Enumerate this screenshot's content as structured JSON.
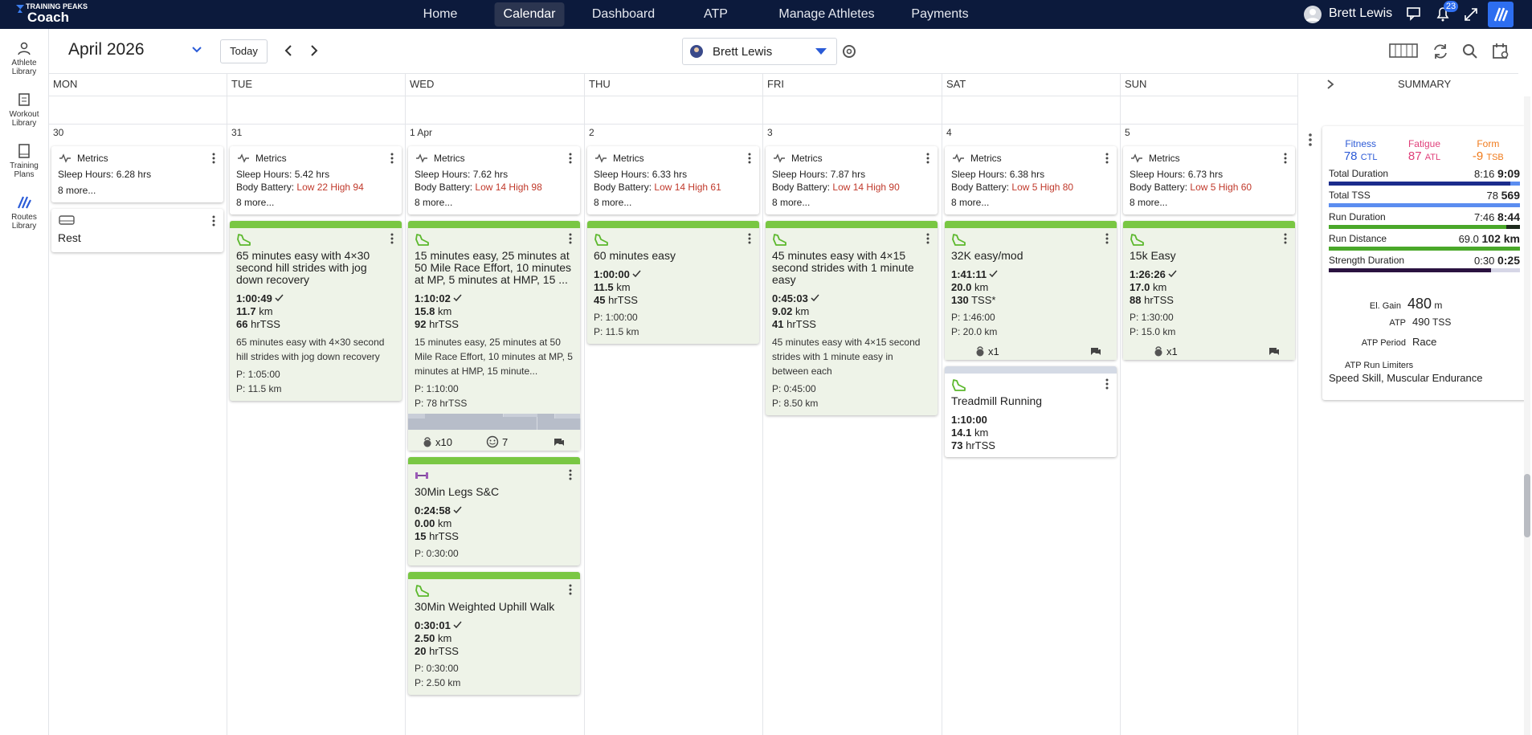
{
  "brand": {
    "top": "TRAINING PEAKS",
    "name": "Coach"
  },
  "nav": [
    "Home",
    "Calendar",
    "Dashboard",
    "ATP",
    "Manage Athletes",
    "Payments"
  ],
  "nav_active": 1,
  "user": {
    "name": "Brett Lewis",
    "notifications": "23"
  },
  "sidebar": [
    "Athlete Library",
    "Workout Library",
    "Training Plans",
    "Routes Library"
  ],
  "toolbar": {
    "month": "April 2026",
    "today": "Today",
    "athlete": "Brett Lewis"
  },
  "days": [
    "MON",
    "TUE",
    "WED",
    "THU",
    "FRI",
    "SAT",
    "SUN"
  ],
  "summary_header": "SUMMARY",
  "columns": [
    {
      "date": "30",
      "items": [
        {
          "kind": "metrics",
          "title": "Metrics",
          "sleep": "Sleep Hours: 6.28 hrs",
          "more": "8 more..."
        },
        {
          "kind": "rest",
          "title": "Rest"
        }
      ]
    },
    {
      "date": "31",
      "items": [
        {
          "kind": "metrics",
          "title": "Metrics",
          "sleep": "Sleep Hours: 5.42 hrs",
          "battery_label": "Body Battery:",
          "battery": "Low 22 High 94",
          "more": "8 more..."
        },
        {
          "kind": "workout",
          "sport": "run",
          "completed": true,
          "title": "65 minutes easy with 4×30 second hill strides with jog down recovery",
          "duration": "1:00:49",
          "distance": "11.7",
          "distance_unit": "km",
          "tss": "66",
          "tss_unit": "hrTSS",
          "description": "65 minutes easy with 4×30 second hill strides with jog down recovery",
          "planned": [
            "P: 1:05:00",
            "P: 11.5 km"
          ]
        }
      ]
    },
    {
      "date": "1 Apr",
      "items": [
        {
          "kind": "metrics",
          "title": "Metrics",
          "sleep": "Sleep Hours: 7.62 hrs",
          "battery_label": "Body Battery:",
          "battery": "Low 14 High 98",
          "more": "8 more..."
        },
        {
          "kind": "workout",
          "sport": "run",
          "completed": true,
          "title": "15 minutes easy, 25 minutes at 50 Mile Race Effort, 10 minutes at MP, 5 minutes at HMP, 15 ...",
          "duration": "1:10:02",
          "distance": "15.8",
          "distance_unit": "km",
          "tss": "92",
          "tss_unit": "hrTSS",
          "description": "15 minutes easy, 25 minutes at 50 Mile Race Effort, 10 minutes at MP, 5 minutes at HMP, 15 minute...",
          "planned": [
            "P: 1:10:00",
            "P: 78 hrTSS"
          ],
          "graph": true,
          "footer": {
            "strength": "x10",
            "smiley": "7",
            "comments": true
          }
        },
        {
          "kind": "workout",
          "sport": "strength",
          "completed": true,
          "title": "30Min Legs S&C",
          "duration": "0:24:58",
          "distance": "0.00",
          "distance_unit": "km",
          "tss": "15",
          "tss_unit": "hrTSS",
          "planned": [
            "P: 0:30:00"
          ]
        },
        {
          "kind": "workout",
          "sport": "run",
          "completed": true,
          "title": "30Min Weighted Uphill Walk",
          "duration": "0:30:01",
          "distance": "2.50",
          "distance_unit": "km",
          "tss": "20",
          "tss_unit": "hrTSS",
          "planned": [
            "P: 0:30:00",
            "P: 2.50 km"
          ]
        }
      ]
    },
    {
      "date": "2",
      "items": [
        {
          "kind": "metrics",
          "title": "Metrics",
          "sleep": "Sleep Hours: 6.33 hrs",
          "battery_label": "Body Battery:",
          "battery": "Low 14 High 61",
          "more": "8 more..."
        },
        {
          "kind": "workout",
          "sport": "run",
          "completed": true,
          "title": "60 minutes easy",
          "duration": "1:00:00",
          "distance": "11.5",
          "distance_unit": "km",
          "tss": "45",
          "tss_unit": "hrTSS",
          "planned": [
            "P: 1:00:00",
            "P: 11.5 km"
          ]
        }
      ]
    },
    {
      "date": "3",
      "items": [
        {
          "kind": "metrics",
          "title": "Metrics",
          "sleep": "Sleep Hours: 7.87 hrs",
          "battery_label": "Body Battery:",
          "battery": "Low 14 High 90",
          "more": "8 more..."
        },
        {
          "kind": "workout",
          "sport": "run",
          "completed": true,
          "title": "45 minutes easy with 4×15 second strides with 1 minute easy",
          "duration": "0:45:03",
          "distance": "9.02",
          "distance_unit": "km",
          "tss": "41",
          "tss_unit": "hrTSS",
          "description": "45 minutes easy with 4×15 second strides with 1 minute easy in between each",
          "planned": [
            "P: 0:45:00",
            "P: 8.50 km"
          ]
        }
      ]
    },
    {
      "date": "4",
      "items": [
        {
          "kind": "metrics",
          "title": "Metrics",
          "sleep": "Sleep Hours: 6.38 hrs",
          "battery_label": "Body Battery:",
          "battery": "Low 5 High 80",
          "more": "8 more..."
        },
        {
          "kind": "workout",
          "sport": "run",
          "completed": true,
          "title": "32K easy/mod",
          "duration": "1:41:11",
          "distance": "20.0",
          "distance_unit": "km",
          "tss": "130",
          "tss_unit": "TSS*",
          "planned": [
            "P: 1:46:00",
            "P: 20.0 km"
          ],
          "footer": {
            "strength": "x1",
            "comments": true
          }
        },
        {
          "kind": "workout",
          "sport": "run",
          "completed": false,
          "title": "Treadmill Running",
          "duration": "1:10:00",
          "distance": "14.1",
          "distance_unit": "km",
          "tss": "73",
          "tss_unit": "hrTSS"
        }
      ]
    },
    {
      "date": "5",
      "items": [
        {
          "kind": "metrics",
          "title": "Metrics",
          "sleep": "Sleep Hours: 6.73 hrs",
          "battery_label": "Body Battery:",
          "battery": "Low 5 High 60",
          "more": "8 more..."
        },
        {
          "kind": "workout",
          "sport": "run",
          "completed": true,
          "title": "15k Easy",
          "duration": "1:26:26",
          "distance": "17.0",
          "distance_unit": "km",
          "tss": "88",
          "tss_unit": "hrTSS",
          "planned": [
            "P: 1:30:00",
            "P: 15.0 km"
          ],
          "footer": {
            "strength": "x1",
            "comments": true
          }
        }
      ]
    }
  ],
  "summary": {
    "metrics": [
      {
        "label": "Fitness",
        "value": "78",
        "unit": "CTL",
        "color": "#2c5ad6"
      },
      {
        "label": "Fatigue",
        "value": "87",
        "unit": "ATL",
        "color": "#e0407a"
      },
      {
        "label": "Form",
        "value": "-9",
        "unit": "TSB",
        "color": "#f07a1a"
      }
    ],
    "rows": [
      {
        "label": "Total Duration",
        "planned": "8:16",
        "completed": "9:09"
      },
      {
        "label": "Total TSS",
        "planned": "78",
        "completed": "569"
      },
      {
        "label": "Run Duration",
        "planned": "7:46",
        "completed": "8:44"
      },
      {
        "label": "Run Distance",
        "planned": "69.0",
        "completed": "102 km"
      },
      {
        "label": "Strength Duration",
        "planned": "0:30",
        "completed": "0:25"
      }
    ],
    "extra": [
      {
        "label": "El. Gain",
        "value": "480",
        "unit": "m"
      },
      {
        "label": "ATP",
        "value": "490",
        "unit": "TSS"
      },
      {
        "label": "ATP Period",
        "value": "Race"
      }
    ],
    "limiters_label": "ATP Run Limiters",
    "limiters": "Speed Skill, Muscular Endurance"
  }
}
